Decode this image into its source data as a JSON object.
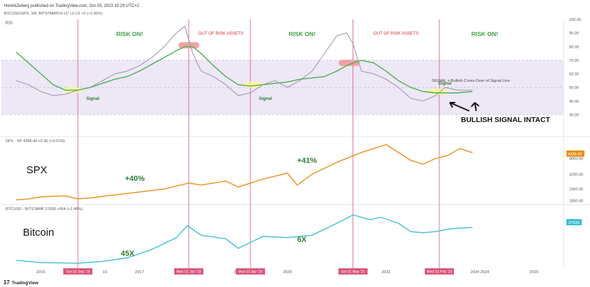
{
  "header": {
    "publisher": "HenrikZeberg published on TradingView.com, Oct 03, 2023 10:29 UTC+2",
    "symbol": "BTCUSD/SPX, 1M, BITSTAMP",
    "ohlc": "O4  H7  L6  C6  +0 (+2.45%)"
  },
  "footer": {
    "brand": "TradingView"
  },
  "colors": {
    "rsi": "#9b8fb0",
    "signal": "#4caf50",
    "spx": "#e8901a",
    "btc": "#3fc0cf",
    "vline": "#d9547a",
    "risk_on": "#43a047",
    "risk_off": "#d32f2f",
    "band": "#ede7f6",
    "marker_red": "#ef9a9a",
    "marker_yellow": "#fff59d"
  },
  "chart_data": [
    {
      "type": "line",
      "panel": "rsi",
      "title": "RSI",
      "ylim": [
        20,
        100
      ],
      "yticks": [
        30,
        40,
        50,
        60,
        70,
        80,
        90,
        100
      ],
      "ytick_labels": [
        "30.00",
        "40.00",
        "50.00",
        "60.00",
        "70.00",
        "80.00",
        "90.00",
        "100.00"
      ],
      "band": [
        30,
        70
      ],
      "x": [
        2014.5,
        2014.75,
        2015.0,
        2015.25,
        2015.5,
        2015.75,
        2016.0,
        2016.25,
        2016.5,
        2016.75,
        2017.0,
        2017.25,
        2017.5,
        2017.75,
        2017.92,
        2018.08,
        2018.25,
        2018.5,
        2018.75,
        2019.0,
        2019.25,
        2019.5,
        2019.75,
        2020.0,
        2020.25,
        2020.5,
        2020.75,
        2021.0,
        2021.2,
        2021.33,
        2021.5,
        2021.75,
        2022.0,
        2022.25,
        2022.5,
        2022.75,
        2023.0,
        2023.2,
        2023.45,
        2023.75
      ],
      "series": [
        {
          "key": "rsi",
          "values": [
            55,
            52,
            47,
            44,
            45,
            48,
            50,
            55,
            60,
            62,
            66,
            72,
            80,
            90,
            95,
            75,
            62,
            58,
            52,
            44,
            46,
            52,
            55,
            50,
            55,
            62,
            75,
            88,
            90,
            82,
            62,
            60,
            56,
            50,
            42,
            40,
            44,
            50,
            48,
            48
          ]
        },
        {
          "key": "signal",
          "values": [
            76,
            68,
            60,
            52,
            48,
            48,
            50,
            53,
            56,
            58,
            62,
            67,
            72,
            77,
            80,
            80,
            75,
            66,
            58,
            52,
            51,
            52,
            53,
            54,
            56,
            57,
            58,
            62,
            66,
            68,
            70,
            68,
            62,
            55,
            50,
            47,
            46,
            46,
            46,
            47
          ]
        }
      ]
    },
    {
      "type": "line",
      "panel": "spx",
      "legend": "SPX · SP  4288.40  +0.36 (+0.01%)",
      "label": "SPX",
      "ylim": [
        1700,
        5000
      ],
      "yticks": [
        1850,
        2450,
        3200,
        4000
      ],
      "ytick_labels": [
        "1850.00",
        "2450.00",
        "3200.00",
        "4000.00"
      ],
      "last_value": "4288.40",
      "x": [
        2014.5,
        2014.75,
        2015.0,
        2015.5,
        2015.75,
        2016.0,
        2016.5,
        2017.0,
        2017.5,
        2018.0,
        2018.25,
        2018.75,
        2019.0,
        2019.5,
        2020.0,
        2020.2,
        2020.5,
        2021.0,
        2021.5,
        2022.0,
        2022.25,
        2022.5,
        2022.75,
        2023.0,
        2023.25,
        2023.5,
        2023.75
      ],
      "series": [
        {
          "key": "spx",
          "values": [
            1900,
            1950,
            2050,
            2100,
            1950,
            2000,
            2150,
            2300,
            2450,
            2750,
            2650,
            2850,
            2550,
            2950,
            3250,
            2650,
            3200,
            3800,
            4300,
            4700,
            4300,
            3900,
            3700,
            4000,
            4150,
            4500,
            4290
          ]
        }
      ]
    },
    {
      "type": "line",
      "panel": "btc",
      "legend": "BTCUSD · BITSTAMP  27630  +664 (+2.46%)",
      "label": "Bitcoin",
      "last_value": "27630",
      "ylim": [
        0,
        1
      ],
      "x": [
        2014.5,
        2015.0,
        2015.75,
        2016.25,
        2016.75,
        2017.25,
        2017.75,
        2017.97,
        2018.25,
        2018.75,
        2019.0,
        2019.5,
        2020.0,
        2020.5,
        2021.0,
        2021.33,
        2021.67,
        2021.9,
        2022.25,
        2022.5,
        2022.75,
        2023.0,
        2023.25,
        2023.5,
        2023.75
      ],
      "series": [
        {
          "key": "btc",
          "values": [
            0.1,
            0.06,
            0.05,
            0.08,
            0.14,
            0.28,
            0.48,
            0.68,
            0.52,
            0.46,
            0.3,
            0.5,
            0.48,
            0.52,
            0.72,
            0.86,
            0.78,
            0.82,
            0.72,
            0.58,
            0.56,
            0.58,
            0.62,
            0.64,
            0.65
          ]
        }
      ]
    }
  ],
  "x_axis": {
    "range": [
      2014.2,
      2025.6
    ],
    "ticks": [
      2015,
      2017,
      2019,
      2020,
      2022,
      2024,
      2025
    ],
    "tick_labels": [
      "2015",
      "2017",
      "2019",
      "2020",
      "2022",
      "2024",
      "2025"
    ]
  },
  "partial_tick_labels": [
    {
      "x": 2016.3,
      "text": "16"
    },
    {
      "x": 2021.15,
      "text": "20"
    },
    {
      "x": 2023.8,
      "text": "2024"
    }
  ],
  "signal_lines": [
    {
      "x": 2015.75,
      "label": "Tue 01 Sep '15"
    },
    {
      "x": 2018.0,
      "label": "Mon 01 Jan '18"
    },
    {
      "x": 2019.25,
      "label": "Mon 01 Apr '19"
    },
    {
      "x": 2021.33,
      "label": "Sat 01 May '21"
    },
    {
      "x": 2023.08,
      "label": "Wed 01 Feb '23"
    }
  ],
  "annotations": {
    "regimes": [
      {
        "x": 2016.8,
        "text": "RISK ON!",
        "kind": "on"
      },
      {
        "x": 2018.65,
        "text": "OUT OF RISK ASSETS",
        "kind": "off"
      },
      {
        "x": 2020.3,
        "text": "RISK ON!",
        "kind": "on"
      },
      {
        "x": 2022.2,
        "text": "OUT OF RISK ASSETS",
        "kind": "off"
      },
      {
        "x": 2024.0,
        "text": "RISK ON!",
        "kind": "on"
      }
    ],
    "signal_words": [
      {
        "x": 2015.92,
        "y": 42,
        "text": "Signal"
      },
      {
        "x": 2019.42,
        "y": 42,
        "text": "Signal"
      },
      {
        "x": 2023.06,
        "y": 53,
        "text": "Signal"
      }
    ],
    "signal_legend": "SIGNAL = Bullish Cross-Over of Signal Line",
    "bullish": "BULLISH SIGNAL INTACT",
    "spx_gain_1": "+40%",
    "spx_gain_2": "+41%",
    "btc_gain_1": "45X",
    "btc_gain_2": "6X"
  },
  "markers": [
    {
      "x": 2015.65,
      "y": 48,
      "kind": "cross"
    },
    {
      "x": 2018.0,
      "y": 81,
      "kind": "top"
    },
    {
      "x": 2019.3,
      "y": 52,
      "kind": "cross"
    },
    {
      "x": 2021.25,
      "y": 68,
      "kind": "top"
    },
    {
      "x": 2023.05,
      "y": 47,
      "kind": "cross"
    }
  ]
}
